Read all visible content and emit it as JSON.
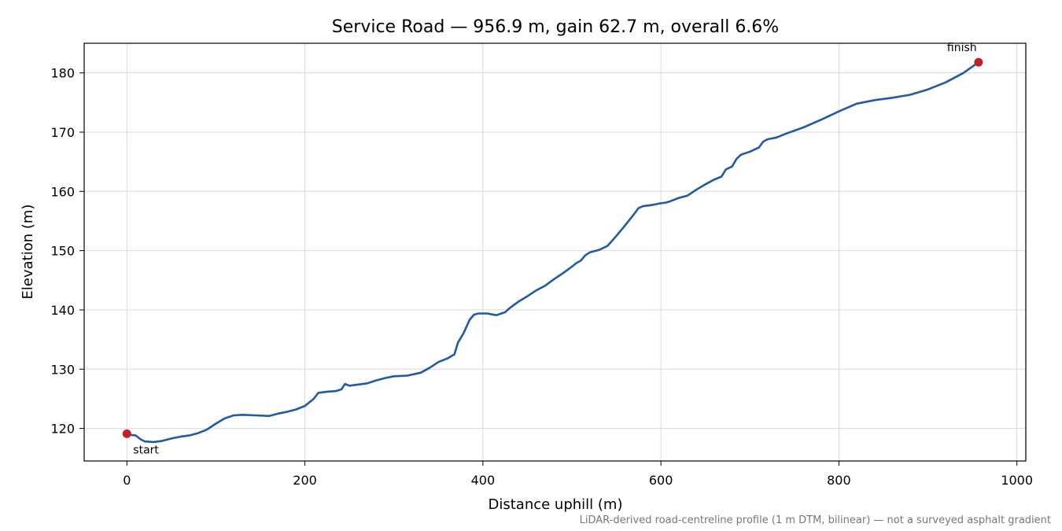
{
  "chart_data": {
    "type": "line",
    "title": "Service Road — 956.9 m, gain 62.7 m, overall 6.6%",
    "xlabel": "Distance uphill (m)",
    "ylabel": "Elevation (m)",
    "xlim": [
      -48,
      1010
    ],
    "ylim": [
      114.5,
      185
    ],
    "x_ticks": [
      0,
      200,
      400,
      600,
      800,
      1000
    ],
    "y_ticks": [
      120,
      130,
      140,
      150,
      160,
      170,
      180
    ],
    "grid": true,
    "series": [
      {
        "color": "#1f5aa8",
        "points": [
          [
            0,
            119.1
          ],
          [
            5,
            118.9
          ],
          [
            10,
            118.8
          ],
          [
            15,
            118.2
          ],
          [
            20,
            117.8
          ],
          [
            30,
            117.7
          ],
          [
            40,
            117.9
          ],
          [
            50,
            118.3
          ],
          [
            60,
            118.6
          ],
          [
            70,
            118.8
          ],
          [
            80,
            119.2
          ],
          [
            90,
            119.8
          ],
          [
            100,
            120.8
          ],
          [
            110,
            121.7
          ],
          [
            120,
            122.2
          ],
          [
            130,
            122.3
          ],
          [
            145,
            122.2
          ],
          [
            160,
            122.1
          ],
          [
            170,
            122.5
          ],
          [
            180,
            122.8
          ],
          [
            190,
            123.2
          ],
          [
            200,
            123.8
          ],
          [
            210,
            125.0
          ],
          [
            215,
            126.0
          ],
          [
            225,
            126.2
          ],
          [
            235,
            126.3
          ],
          [
            241,
            126.6
          ],
          [
            245,
            127.5
          ],
          [
            250,
            127.2
          ],
          [
            260,
            127.4
          ],
          [
            270,
            127.6
          ],
          [
            280,
            128.1
          ],
          [
            290,
            128.5
          ],
          [
            300,
            128.8
          ],
          [
            315,
            128.9
          ],
          [
            330,
            129.4
          ],
          [
            340,
            130.2
          ],
          [
            350,
            131.2
          ],
          [
            360,
            131.8
          ],
          [
            368,
            132.5
          ],
          [
            372,
            134.5
          ],
          [
            378,
            136.0
          ],
          [
            385,
            138.3
          ],
          [
            390,
            139.2
          ],
          [
            395,
            139.4
          ],
          [
            405,
            139.4
          ],
          [
            415,
            139.1
          ],
          [
            425,
            139.6
          ],
          [
            430,
            140.3
          ],
          [
            440,
            141.4
          ],
          [
            450,
            142.3
          ],
          [
            460,
            143.3
          ],
          [
            470,
            144.1
          ],
          [
            480,
            145.2
          ],
          [
            490,
            146.2
          ],
          [
            500,
            147.3
          ],
          [
            505,
            147.9
          ],
          [
            510,
            148.3
          ],
          [
            515,
            149.2
          ],
          [
            520,
            149.7
          ],
          [
            530,
            150.1
          ],
          [
            540,
            150.8
          ],
          [
            550,
            152.5
          ],
          [
            560,
            154.3
          ],
          [
            570,
            156.2
          ],
          [
            575,
            157.2
          ],
          [
            580,
            157.5
          ],
          [
            590,
            157.7
          ],
          [
            600,
            158.0
          ],
          [
            605,
            158.1
          ],
          [
            610,
            158.3
          ],
          [
            620,
            158.9
          ],
          [
            630,
            159.3
          ],
          [
            640,
            160.3
          ],
          [
            650,
            161.2
          ],
          [
            660,
            162.0
          ],
          [
            668,
            162.5
          ],
          [
            673,
            163.7
          ],
          [
            680,
            164.2
          ],
          [
            685,
            165.5
          ],
          [
            690,
            166.2
          ],
          [
            700,
            166.7
          ],
          [
            710,
            167.4
          ],
          [
            715,
            168.4
          ],
          [
            720,
            168.8
          ],
          [
            730,
            169.1
          ],
          [
            740,
            169.7
          ],
          [
            760,
            170.8
          ],
          [
            780,
            172.1
          ],
          [
            800,
            173.5
          ],
          [
            820,
            174.8
          ],
          [
            840,
            175.4
          ],
          [
            860,
            175.8
          ],
          [
            880,
            176.3
          ],
          [
            900,
            177.2
          ],
          [
            920,
            178.4
          ],
          [
            940,
            180.0
          ],
          [
            956.9,
            181.8
          ]
        ]
      }
    ],
    "markers": [
      {
        "label": "start",
        "x": 0,
        "y": 119.1,
        "color": "#c0202a"
      },
      {
        "label": "finish",
        "x": 956.9,
        "y": 181.8,
        "color": "#c0202a"
      }
    ],
    "footnote": "LiDAR-derived road-centreline profile (1 m DTM, bilinear) — not a surveyed asphalt gradient"
  }
}
